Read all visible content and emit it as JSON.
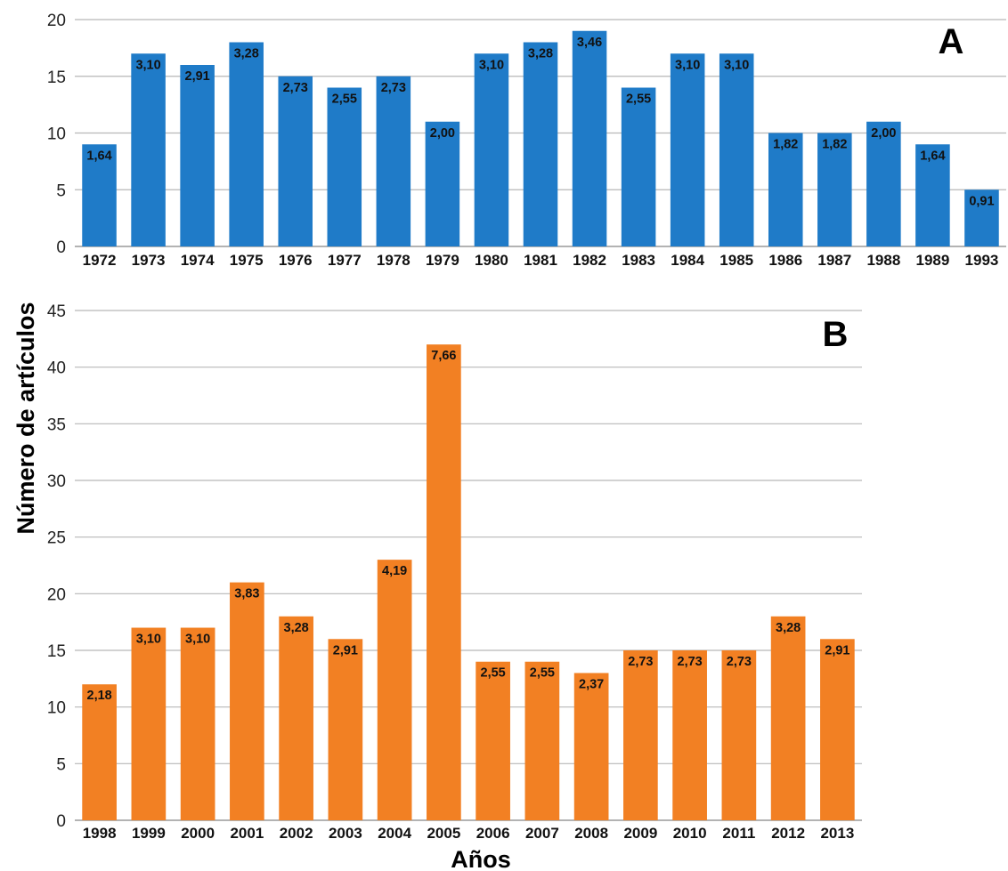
{
  "chart_data": [
    {
      "type": "bar",
      "panel_label": "A",
      "color": "#1f7bc8",
      "categories": [
        "1972",
        "1973",
        "1974",
        "1975",
        "1976",
        "1977",
        "1978",
        "1979",
        "1980",
        "1981",
        "1982",
        "1983",
        "1984",
        "1985",
        "1986",
        "1987",
        "1988",
        "1989",
        "1993"
      ],
      "values": [
        9,
        17,
        16,
        18,
        15,
        14,
        15,
        11,
        17,
        18,
        19,
        14,
        17,
        17,
        10,
        10,
        11,
        9,
        5
      ],
      "data_labels": [
        "1,64",
        "3,10",
        "2,91",
        "3,28",
        "2,73",
        "2,55",
        "2,73",
        "2,00",
        "3,10",
        "3,28",
        "3,46",
        "2,55",
        "3,10",
        "3,10",
        "1,82",
        "1,82",
        "2,00",
        "1,64",
        "0,91"
      ],
      "ylim": [
        0,
        20
      ],
      "yticks": [
        "0",
        "5",
        "10",
        "15",
        "20"
      ],
      "grid": true
    },
    {
      "type": "bar",
      "panel_label": "B",
      "color": "#f28023",
      "categories": [
        "1998",
        "1999",
        "2000",
        "2001",
        "2002",
        "2003",
        "2004",
        "2005",
        "2006",
        "2007",
        "2008",
        "2009",
        "2010",
        "2011",
        "2012",
        "2013"
      ],
      "values": [
        12,
        17,
        17,
        21,
        18,
        16,
        23,
        42,
        14,
        14,
        13,
        15,
        15,
        15,
        18,
        16
      ],
      "data_labels": [
        "2,18",
        "3,10",
        "3,10",
        "3,83",
        "3,28",
        "2,91",
        "4,19",
        "7,66",
        "2,55",
        "2,55",
        "2,37",
        "2,73",
        "2,73",
        "2,73",
        "3,28",
        "2,91"
      ],
      "ylim": [
        0,
        45
      ],
      "yticks": [
        "0",
        "5",
        "10",
        "15",
        "20",
        "25",
        "30",
        "35",
        "40",
        "45"
      ],
      "grid": true
    }
  ],
  "axes": {
    "ylabel": "Número de artículos",
    "xlabel": "Años"
  }
}
